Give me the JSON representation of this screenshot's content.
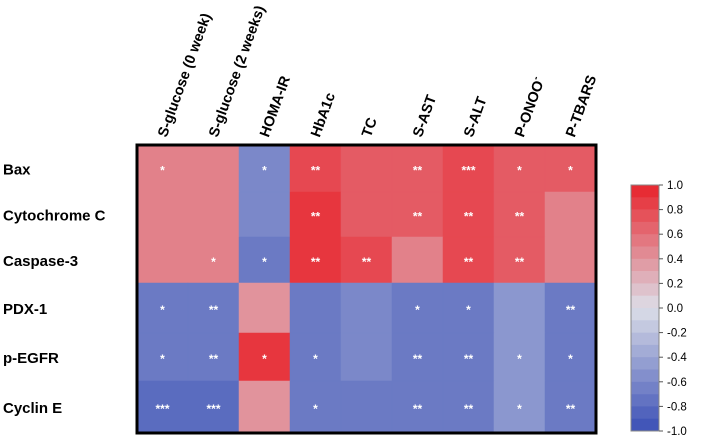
{
  "chart_data": {
    "type": "heatmap",
    "columns": [
      "S-glucose (0 week)",
      "S-glucose (2 weeks)",
      "HOMA-IR",
      "HbA1c",
      "TC",
      "S-AST",
      "S-ALT",
      "P-ONOO",
      "P-TBARS"
    ],
    "column_superscript": {
      "P-ONOO": "-"
    },
    "rows": [
      "Bax",
      "Cytochrome C",
      "Caspase-3",
      "PDX-1",
      "p-EGFR",
      "Cyclin E"
    ],
    "values": [
      [
        0.5,
        0.5,
        -0.6,
        0.8,
        0.7,
        0.7,
        0.8,
        0.7,
        0.7
      ],
      [
        0.5,
        0.5,
        -0.6,
        0.9,
        0.7,
        0.7,
        0.8,
        0.7,
        0.5
      ],
      [
        0.5,
        0.5,
        -0.7,
        0.9,
        0.8,
        0.5,
        0.8,
        0.7,
        0.5
      ],
      [
        -0.7,
        -0.7,
        0.4,
        -0.7,
        -0.6,
        -0.7,
        -0.7,
        -0.5,
        -0.7
      ],
      [
        -0.7,
        -0.7,
        0.9,
        -0.7,
        -0.6,
        -0.7,
        -0.7,
        -0.5,
        -0.7
      ],
      [
        -0.8,
        -0.8,
        0.4,
        -0.7,
        -0.7,
        -0.7,
        -0.7,
        -0.5,
        -0.7
      ]
    ],
    "significance": [
      [
        "*",
        "",
        "*",
        "**",
        "",
        "**",
        "***",
        "*",
        "*"
      ],
      [
        "",
        "",
        "",
        "**",
        "",
        "**",
        "**",
        "**",
        ""
      ],
      [
        "",
        "*",
        "*",
        "**",
        "**",
        "",
        "**",
        "**",
        ""
      ],
      [
        "*",
        "**",
        "",
        "",
        "",
        "*",
        "*",
        "",
        "**"
      ],
      [
        "*",
        "**",
        "*",
        "*",
        "",
        "**",
        "**",
        "*",
        "*"
      ],
      [
        "***",
        "***",
        "",
        "*",
        "",
        "**",
        "**",
        "*",
        "**"
      ]
    ],
    "colorbar": {
      "ticks": [
        "1.0",
        "0.8",
        "0.6",
        "0.4",
        "0.2",
        "0.0",
        "-0.2",
        "-0.4",
        "-0.6",
        "-0.8",
        "-1.0"
      ],
      "range": [
        -1.0,
        1.0
      ],
      "high_color": "#e8232b",
      "low_color": "#3a4fb5"
    }
  }
}
